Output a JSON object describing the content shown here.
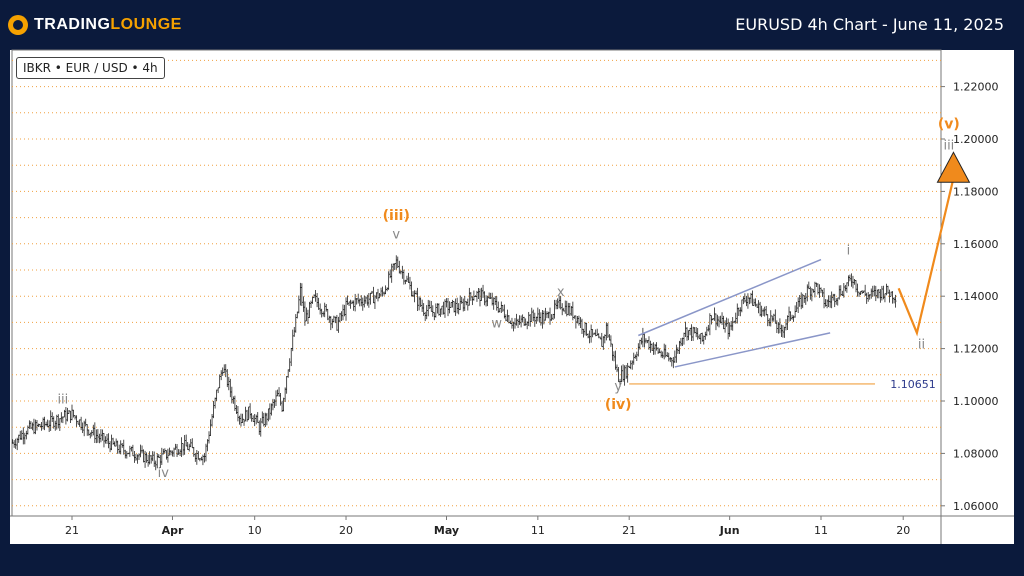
{
  "header": {
    "logo_prefix": "TRADING",
    "logo_suffix": "LOUNGE",
    "title": "EURUSD 4h Chart - June 11, 2025"
  },
  "symbol_label": "IBKR • EUR / USD • 4h",
  "colors": {
    "background": "#0b1a3c",
    "accent": "#f5a100",
    "wave_orange": "#f08a1c",
    "wave_gray": "#888888",
    "channel": "#8a96c8",
    "level_line": "#f0a040",
    "level_text": "#2d3a8c"
  },
  "chart_data": {
    "type": "candlestick",
    "title": "EURUSD 4h Chart - June 11, 2025",
    "ylim": [
      1.05,
      1.23
    ],
    "y_ticks": [
      "1.22000",
      "1.20000",
      "1.18000",
      "1.16000",
      "1.14000",
      "1.12000",
      "1.10000",
      "1.08000",
      "1.06000"
    ],
    "y_tick_values": [
      1.22,
      1.2,
      1.18,
      1.16,
      1.14,
      1.12,
      1.1,
      1.08,
      1.06
    ],
    "x_ticks": [
      {
        "label": "21",
        "bold": false,
        "day": 0
      },
      {
        "label": "Apr",
        "bold": true,
        "day": 11
      },
      {
        "label": "10",
        "bold": false,
        "day": 20
      },
      {
        "label": "20",
        "bold": false,
        "day": 30
      },
      {
        "label": "May",
        "bold": true,
        "day": 41
      },
      {
        "label": "11",
        "bold": false,
        "day": 51
      },
      {
        "label": "21",
        "bold": false,
        "day": 61
      },
      {
        "label": "Jun",
        "bold": true,
        "day": 72
      },
      {
        "label": "11",
        "bold": false,
        "day": 82
      },
      {
        "label": "20",
        "bold": false,
        "day": 91
      }
    ],
    "xlim": [
      -6.5,
      98
    ],
    "grid": "horizontal-dotted",
    "price_path": [
      [
        -6.5,
        1.084
      ],
      [
        -5,
        1.089
      ],
      [
        -3,
        1.091
      ],
      [
        -1,
        1.094
      ],
      [
        0,
        1.095
      ],
      [
        1.5,
        1.09
      ],
      [
        3,
        1.086
      ],
      [
        5,
        1.082
      ],
      [
        7,
        1.08
      ],
      [
        9,
        1.077
      ],
      [
        10,
        1.079
      ],
      [
        11,
        1.081
      ],
      [
        12,
        1.083
      ],
      [
        13,
        1.082
      ],
      [
        13.5,
        1.08
      ],
      [
        14.5,
        1.079
      ],
      [
        15,
        1.088
      ],
      [
        16,
        1.106
      ],
      [
        16.5,
        1.113
      ],
      [
        17.5,
        1.102
      ],
      [
        18.5,
        1.093
      ],
      [
        19.5,
        1.096
      ],
      [
        20.5,
        1.09
      ],
      [
        21.5,
        1.095
      ],
      [
        22.5,
        1.102
      ],
      [
        23,
        1.098
      ],
      [
        23.5,
        1.11
      ],
      [
        24,
        1.12
      ],
      [
        24.5,
        1.13
      ],
      [
        25,
        1.142
      ],
      [
        25.5,
        1.131
      ],
      [
        26.5,
        1.139
      ],
      [
        28,
        1.133
      ],
      [
        29,
        1.129
      ],
      [
        30,
        1.136
      ],
      [
        31,
        1.138
      ],
      [
        32.5,
        1.139
      ],
      [
        34,
        1.141
      ],
      [
        35.5,
        1.153
      ],
      [
        36.5,
        1.147
      ],
      [
        37.5,
        1.14
      ],
      [
        38.5,
        1.135
      ],
      [
        39.5,
        1.134
      ],
      [
        41,
        1.136
      ],
      [
        42.5,
        1.136
      ],
      [
        44,
        1.141
      ],
      [
        45.5,
        1.139
      ],
      [
        47,
        1.135
      ],
      [
        48.5,
        1.129
      ],
      [
        50,
        1.132
      ],
      [
        52,
        1.132
      ],
      [
        53.5,
        1.137
      ],
      [
        55,
        1.133
      ],
      [
        56.5,
        1.126
      ],
      [
        58,
        1.122
      ],
      [
        58.5,
        1.128
      ],
      [
        59,
        1.121
      ],
      [
        59.8,
        1.109
      ],
      [
        60.6,
        1.111
      ],
      [
        61.5,
        1.117
      ],
      [
        62.5,
        1.124
      ],
      [
        63.5,
        1.121
      ],
      [
        64.5,
        1.118
      ],
      [
        65.5,
        1.116
      ],
      [
        66,
        1.117
      ],
      [
        67,
        1.127
      ],
      [
        68,
        1.126
      ],
      [
        69,
        1.123
      ],
      [
        70,
        1.133
      ],
      [
        71,
        1.13
      ],
      [
        72,
        1.127
      ],
      [
        73,
        1.136
      ],
      [
        74,
        1.14
      ],
      [
        75,
        1.136
      ],
      [
        76,
        1.133
      ],
      [
        77,
        1.13
      ],
      [
        77.5,
        1.126
      ],
      [
        78.5,
        1.132
      ],
      [
        79.5,
        1.136
      ],
      [
        80.5,
        1.142
      ],
      [
        81.5,
        1.144
      ],
      [
        82.5,
        1.137
      ],
      [
        83.5,
        1.14
      ],
      [
        84.5,
        1.143
      ],
      [
        85.5,
        1.147
      ],
      [
        86,
        1.143
      ],
      [
        87,
        1.14
      ],
      [
        88,
        1.141
      ],
      [
        89,
        1.142
      ],
      [
        90.3,
        1.14
      ]
    ],
    "wave_labels": [
      {
        "text": "iii",
        "day": -1,
        "price": 1.099,
        "color": "gray"
      },
      {
        "text": "iv",
        "day": 10,
        "price": 1.071,
        "color": "gray"
      },
      {
        "text": "(iii)",
        "day": 35.5,
        "price": 1.169,
        "color": "orange"
      },
      {
        "text": "v",
        "day": 35.5,
        "price": 1.162,
        "color": "gray"
      },
      {
        "text": "w",
        "day": 46.5,
        "price": 1.128,
        "color": "gray"
      },
      {
        "text": "x",
        "day": 53.5,
        "price": 1.14,
        "color": "gray"
      },
      {
        "text": "y",
        "day": 59.8,
        "price": 1.104,
        "color": "gray"
      },
      {
        "text": "(iv)",
        "day": 59.8,
        "price": 1.097,
        "color": "orange"
      },
      {
        "text": "i",
        "day": 85,
        "price": 1.156,
        "color": "gray"
      },
      {
        "text": "ii",
        "day": 93,
        "price": 1.12,
        "color": "gray"
      },
      {
        "text": "iii",
        "day": 96,
        "price": 1.196,
        "color": "gray"
      },
      {
        "text": "(v)",
        "day": 96,
        "price": 1.204,
        "color": "orange"
      }
    ],
    "channel": {
      "upper": [
        [
          62,
          1.125
        ],
        [
          82,
          1.154
        ]
      ],
      "lower": [
        [
          66,
          1.113
        ],
        [
          83,
          1.126
        ]
      ]
    },
    "level": {
      "value": 1.10651,
      "label": "1.10651",
      "from_day": 61
    },
    "projection": [
      [
        90.5,
        1.143
      ],
      [
        92.5,
        1.126
      ],
      [
        96.5,
        1.185
      ]
    ]
  }
}
